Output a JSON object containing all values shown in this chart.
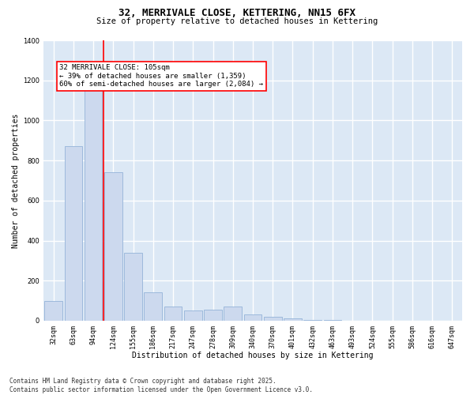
{
  "title": "32, MERRIVALE CLOSE, KETTERING, NN15 6FX",
  "subtitle": "Size of property relative to detached houses in Kettering",
  "xlabel": "Distribution of detached houses by size in Kettering",
  "ylabel": "Number of detached properties",
  "bar_color": "#ccd9ee",
  "bar_edge_color": "#94b3d8",
  "bg_color": "#dce8f5",
  "grid_color": "white",
  "vline_color": "red",
  "vline_x_index": 2.5,
  "annotation_text": "32 MERRIVALE CLOSE: 105sqm\n← 39% of detached houses are smaller (1,359)\n60% of semi-detached houses are larger (2,084) →",
  "annotation_box_color": "white",
  "annotation_box_edge_color": "red",
  "categories": [
    "32sqm",
    "63sqm",
    "94sqm",
    "124sqm",
    "155sqm",
    "186sqm",
    "217sqm",
    "247sqm",
    "278sqm",
    "309sqm",
    "340sqm",
    "370sqm",
    "401sqm",
    "432sqm",
    "463sqm",
    "493sqm",
    "524sqm",
    "555sqm",
    "586sqm",
    "616sqm",
    "647sqm"
  ],
  "values": [
    100,
    870,
    1150,
    740,
    340,
    140,
    70,
    50,
    55,
    70,
    30,
    20,
    10,
    5,
    2,
    1,
    0,
    0,
    0,
    0,
    0
  ],
  "ylim": [
    0,
    1400
  ],
  "yticks": [
    0,
    200,
    400,
    600,
    800,
    1000,
    1200,
    1400
  ],
  "footer_line1": "Contains HM Land Registry data © Crown copyright and database right 2025.",
  "footer_line2": "Contains public sector information licensed under the Open Government Licence v3.0.",
  "title_fontsize": 9,
  "subtitle_fontsize": 7.5,
  "axis_label_fontsize": 7,
  "tick_fontsize": 6,
  "annotation_fontsize": 6.5,
  "footer_fontsize": 5.5
}
